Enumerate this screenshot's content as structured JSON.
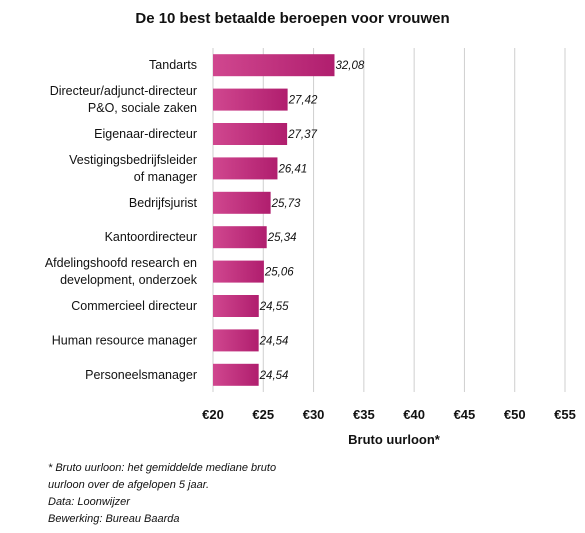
{
  "chart_data": {
    "type": "bar",
    "orientation": "horizontal",
    "title": "De 10 best betaalde beroepen voor vrouwen",
    "categories": [
      [
        "Tandarts"
      ],
      [
        "Directeur/adjunct-directeur",
        "P&O, sociale zaken"
      ],
      [
        "Eigenaar-directeur"
      ],
      [
        "Vestigingsbedrijfsleider",
        "of manager"
      ],
      [
        "Bedrijfsjurist"
      ],
      [
        "Kantoordirecteur"
      ],
      [
        "Afdelingshoofd research en",
        "development, onderzoek"
      ],
      [
        "Commercieel directeur"
      ],
      [
        "Human resource manager"
      ],
      [
        "Personeelsmanager"
      ]
    ],
    "values": [
      32.08,
      27.42,
      27.37,
      26.41,
      25.73,
      25.34,
      25.06,
      24.55,
      24.54,
      24.54
    ],
    "value_labels": [
      "32,08",
      "27,42",
      "27,37",
      "26,41",
      "25,73",
      "25,34",
      "25,06",
      "24,55",
      "24,54",
      "24,54"
    ],
    "xlim": [
      20,
      55
    ],
    "xticks": [
      20,
      25,
      30,
      35,
      40,
      45,
      50,
      55
    ],
    "xtick_labels": [
      "€20",
      "€25",
      "€30",
      "€35",
      "€40",
      "€45",
      "€50",
      "€55"
    ],
    "xlabel": "Bruto uurloon*",
    "ylabel": "",
    "grid": true,
    "colors": {
      "bar_dark": "#b01e6e",
      "bar_light": "#d0478f",
      "grid": "#cfcfcf"
    }
  },
  "notes": [
    "* Bruto uurloon: het gemiddelde mediane bruto",
    "uurloon over de afgelopen 5 jaar.",
    "Data: Loonwijzer",
    "Bewerking: Bureau Baarda"
  ]
}
